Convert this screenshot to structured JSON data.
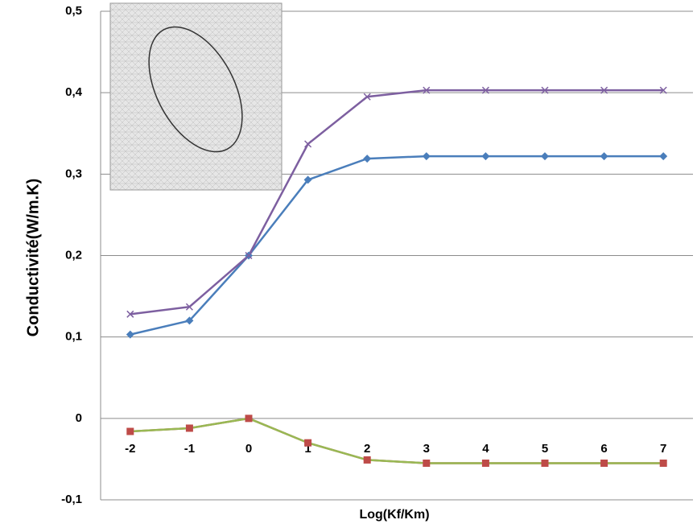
{
  "chart_data": {
    "type": "line",
    "y_label": "Conductivité(W/m.K)",
    "x_label": "Log(Kf/Km)",
    "categories": [
      -2,
      -1,
      0,
      1,
      2,
      3,
      4,
      5,
      6,
      7
    ],
    "series": [
      {
        "color": "#4a7ebb",
        "marker": "diamond",
        "values": [
          0.103,
          0.12,
          0.2,
          0.293,
          0.319,
          0.322,
          0.322,
          0.322,
          0.322,
          0.322
        ]
      },
      {
        "color": "#7d5fa0",
        "marker": "x",
        "values": [
          0.128,
          0.137,
          0.2,
          0.337,
          0.395,
          0.403,
          0.403,
          0.403,
          0.403,
          0.403
        ]
      },
      {
        "color": "#be4b48",
        "marker": "square",
        "values": [
          -0.016,
          -0.012,
          0,
          -0.03,
          -0.051,
          -0.055,
          -0.055,
          -0.055,
          -0.055,
          -0.055
        ]
      },
      {
        "color": "#98b954",
        "marker": "none",
        "values": [
          -0.016,
          -0.012,
          0,
          -0.03,
          -0.051,
          -0.055,
          -0.055,
          -0.055,
          -0.055,
          -0.055
        ]
      }
    ],
    "ylim": [
      -0.1,
      0.5
    ],
    "yticks": [
      {
        "value": -0.1,
        "label": "-0,1"
      },
      0,
      {
        "value": 0.1,
        "label": "0,1"
      },
      {
        "value": 0.2,
        "label": "0,2"
      },
      {
        "value": 0.3,
        "label": "0,3"
      },
      {
        "value": 0.4,
        "label": "0,4"
      },
      {
        "value": 0.5,
        "label": "0,5"
      }
    ],
    "grid": true
  }
}
